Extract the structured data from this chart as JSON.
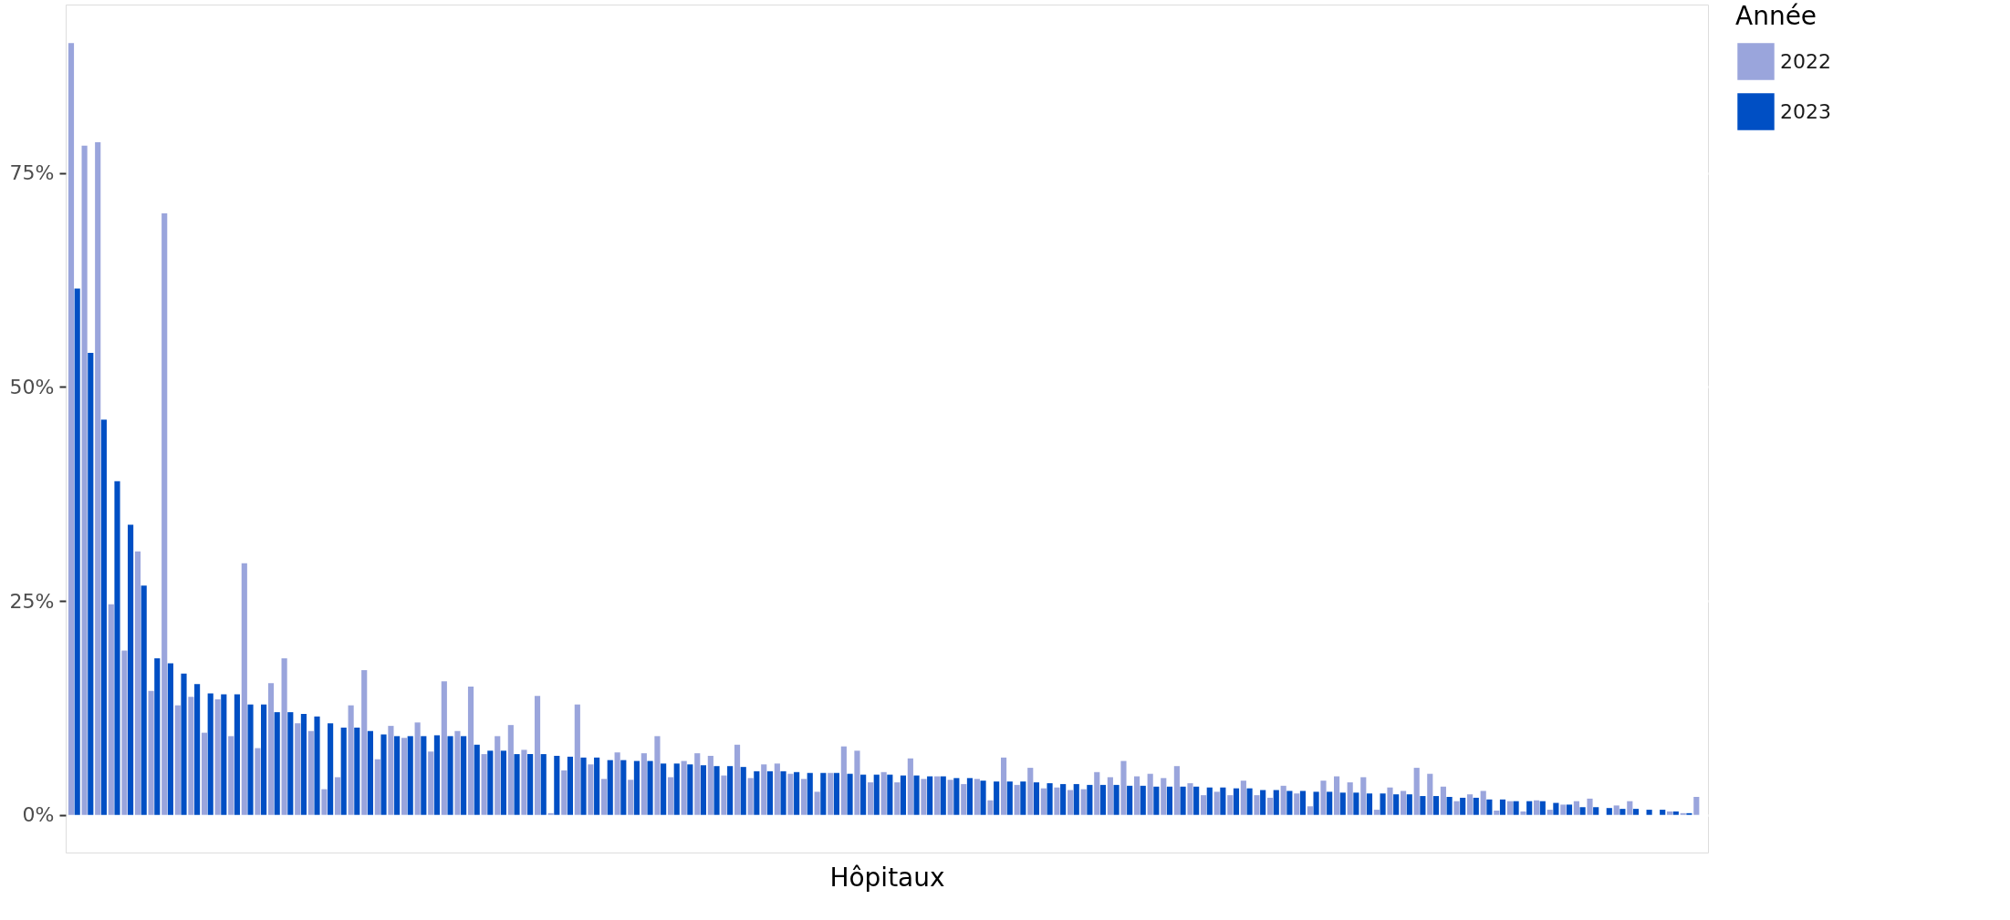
{
  "chart_data": {
    "type": "bar",
    "xlabel": "Hôpitaux",
    "legend_title": "Année",
    "categories": [
      null,
      null,
      null,
      null,
      null,
      null,
      null,
      null,
      null,
      null,
      null,
      null,
      null,
      null,
      null,
      null,
      null,
      null,
      null,
      null,
      null,
      null,
      null,
      null,
      null,
      null,
      null,
      null,
      null,
      null,
      null,
      null,
      null,
      null,
      null,
      null,
      null,
      null,
      null,
      null,
      null,
      null,
      null,
      null,
      null,
      null,
      null,
      null,
      null,
      null,
      null,
      null,
      null,
      null,
      null,
      null,
      null,
      null,
      null,
      null,
      null,
      null,
      null,
      null,
      null,
      null,
      null,
      null,
      null,
      null,
      null,
      null,
      null,
      null,
      null,
      null,
      null,
      null,
      null,
      null,
      null,
      null,
      null,
      null,
      null,
      null,
      null,
      null,
      null,
      null,
      null,
      null,
      null,
      null,
      null,
      null,
      null,
      null,
      null,
      null,
      null,
      null,
      null,
      null,
      null,
      null,
      null,
      null,
      null,
      null,
      null,
      null,
      null,
      null,
      null,
      null,
      null,
      null,
      null,
      null,
      null,
      null,
      null
    ],
    "series": [
      {
        "name": "2022",
        "color": "#9aa5dc",
        "values": [
          90.2,
          78.2,
          78.6,
          24.6,
          19.2,
          30.8,
          14.5,
          70.3,
          12.8,
          13.8,
          9.6,
          13.5,
          9.2,
          29.4,
          7.8,
          15.4,
          18.3,
          10.7,
          9.8,
          3.0,
          4.4,
          12.8,
          16.9,
          6.5,
          10.4,
          9.0,
          10.8,
          7.4,
          15.6,
          9.8,
          15.0,
          7.1,
          9.2,
          10.5,
          7.6,
          13.9,
          0.2,
          5.2,
          12.9,
          5.9,
          4.2,
          7.3,
          4.1,
          7.2,
          9.2,
          4.4,
          6.3,
          7.2,
          6.9,
          4.6,
          8.2,
          4.3,
          5.9,
          6.0,
          4.8,
          4.2,
          2.7,
          4.9,
          8.0,
          7.5,
          3.8,
          5.0,
          3.8,
          6.6,
          4.2,
          4.5,
          4.1,
          3.6,
          4.2,
          1.7,
          6.7,
          3.5,
          5.5,
          3.1,
          3.2,
          2.9,
          3.0,
          5.0,
          4.4,
          6.3,
          4.5,
          4.8,
          4.3,
          5.7,
          3.7,
          2.3,
          2.7,
          2.3,
          4.0,
          2.3,
          2.0,
          3.4,
          2.5,
          1.0,
          4.0,
          4.5,
          3.8,
          4.4,
          0.6,
          3.2,
          2.8,
          5.5,
          4.8,
          3.3,
          1.6,
          2.4,
          2.8,
          0.5,
          1.6,
          0.4,
          1.7,
          0.6,
          1.2,
          1.6,
          1.9,
          null,
          1.1,
          1.6,
          null,
          null,
          0.4,
          0.2,
          2.1
        ]
      },
      {
        "name": "2023",
        "color": "#004fc4",
        "values": [
          61.5,
          54.0,
          46.2,
          39.0,
          33.9,
          26.8,
          18.3,
          17.7,
          16.5,
          15.3,
          14.2,
          14.1,
          14.1,
          12.9,
          12.9,
          12.0,
          12.0,
          11.8,
          11.5,
          10.7,
          10.2,
          10.2,
          9.8,
          9.4,
          9.2,
          9.2,
          9.2,
          9.3,
          9.2,
          9.2,
          8.2,
          7.5,
          7.5,
          7.1,
          7.1,
          7.1,
          6.9,
          6.8,
          6.7,
          6.7,
          6.4,
          6.4,
          6.3,
          6.3,
          6.0,
          6.0,
          5.9,
          5.8,
          5.7,
          5.7,
          5.6,
          5.1,
          5.1,
          5.1,
          5.0,
          4.9,
          4.9,
          4.9,
          4.8,
          4.7,
          4.7,
          4.7,
          4.6,
          4.6,
          4.5,
          4.5,
          4.3,
          4.3,
          4.0,
          3.9,
          3.9,
          3.9,
          3.8,
          3.7,
          3.6,
          3.6,
          3.5,
          3.5,
          3.5,
          3.4,
          3.4,
          3.3,
          3.3,
          3.3,
          3.3,
          3.2,
          3.2,
          3.1,
          3.1,
          2.9,
          2.9,
          2.8,
          2.8,
          2.7,
          2.7,
          2.6,
          2.6,
          2.5,
          2.5,
          2.4,
          2.4,
          2.2,
          2.2,
          2.1,
          2.0,
          2.0,
          1.8,
          1.8,
          1.6,
          1.6,
          1.6,
          1.4,
          1.2,
          0.9,
          0.9,
          0.8,
          0.7,
          0.7,
          0.6,
          0.6,
          0.4,
          0.2,
          null
        ]
      }
    ],
    "ylim": [
      -4.4,
      94.7
    ],
    "yticks": [
      {
        "value": 0,
        "label": "0%"
      },
      {
        "value": 25,
        "label": "25%"
      },
      {
        "value": 50,
        "label": "50%"
      },
      {
        "value": 75,
        "label": "75%"
      }
    ],
    "grid": "y",
    "legend": "right",
    "tick_labels": "y"
  }
}
